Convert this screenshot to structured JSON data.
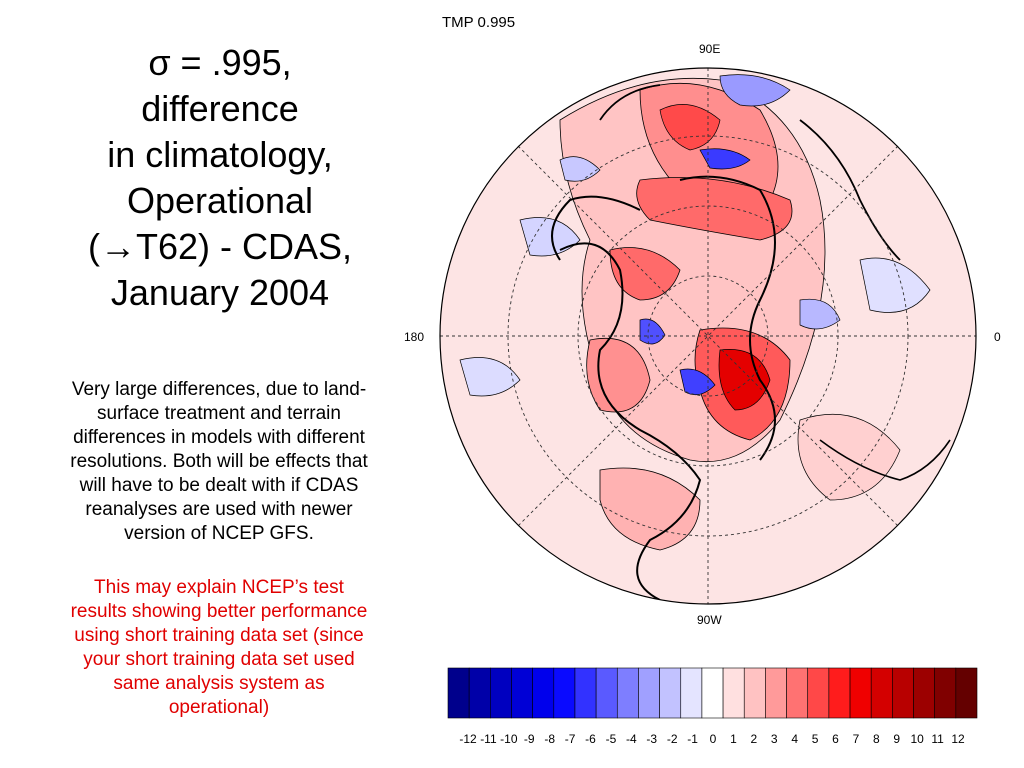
{
  "slide": {
    "title_lines": [
      "σ = .995,",
      "difference",
      "in climatology,",
      "Operational",
      "(→T62) - CDAS,",
      "January 2004"
    ],
    "body_lines": [
      "Very large differences, due to land-",
      "surface treatment and terrain",
      "differences in models with different",
      "resolutions.  Both will be effects that",
      "will have to be dealt with if CDAS",
      "reanalyses are used with newer",
      "version of NCEP GFS."
    ],
    "red_lines": [
      "This may explain NCEP’s test",
      "results showing better performance",
      "using short training data set (since",
      "your short training data set used",
      "same analysis system as",
      "operational)"
    ],
    "red_color": "#e00000"
  },
  "map": {
    "title": "TMP 0.995",
    "label_top": "90E",
    "label_bottom": "90W",
    "label_left": "180",
    "label_right": "0"
  },
  "colorbar": {
    "labels": [
      "-12",
      "-11",
      "-10",
      "-9",
      "-8",
      "-7",
      "-6",
      "-5",
      "-4",
      "-3",
      "-2",
      "-1",
      "0",
      "1",
      "2",
      "3",
      "4",
      "5",
      "6",
      "7",
      "8",
      "9",
      "10",
      "11",
      "12"
    ],
    "colors": [
      "#00008c",
      "#0000a8",
      "#0000c0",
      "#0000d6",
      "#0000ec",
      "#0a0aff",
      "#3232ff",
      "#5a5aff",
      "#7e7eff",
      "#a0a0ff",
      "#c2c2ff",
      "#e4e4ff",
      "#ffffff",
      "#ffe0e0",
      "#ffc2c2",
      "#ff9a9a",
      "#ff7272",
      "#ff4848",
      "#ff1c1c",
      "#f00000",
      "#d40000",
      "#b80000",
      "#9c0000",
      "#800000",
      "#640000"
    ]
  }
}
